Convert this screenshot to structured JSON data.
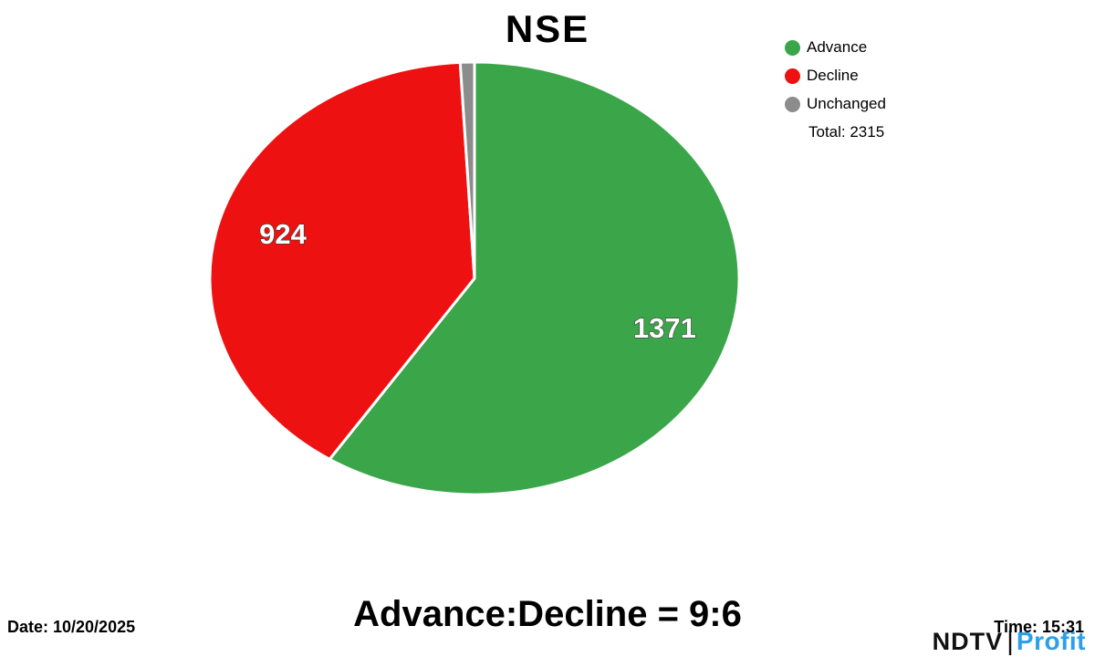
{
  "title": "NSE",
  "legend": {
    "items": [
      {
        "label": "Advance",
        "color": "#3ba54a"
      },
      {
        "label": "Decline",
        "color": "#ee1111"
      },
      {
        "label": "Unchanged",
        "color": "#8c8c8c"
      }
    ],
    "total_label": "Total: 2315"
  },
  "chart_data": {
    "type": "pie",
    "title": "NSE",
    "labels": [
      "Advance",
      "Decline",
      "Unchanged"
    ],
    "values": [
      1371,
      924,
      20
    ],
    "colors": [
      "#3ba54a",
      "#ee1111",
      "#8c8c8c"
    ],
    "total": 2315,
    "start_angle": "top",
    "direction": "clockwise",
    "legend_position": "top-right",
    "value_labels_shown": [
      "1371",
      "924"
    ]
  },
  "footer": {
    "ratio_text": "Advance:Decline = 9:6",
    "date_label": "Date: 10/20/2025",
    "time_label": "Time: 15:31"
  },
  "branding": {
    "ndtv": "NDTV",
    "separator": "|",
    "profit": "Profit"
  }
}
